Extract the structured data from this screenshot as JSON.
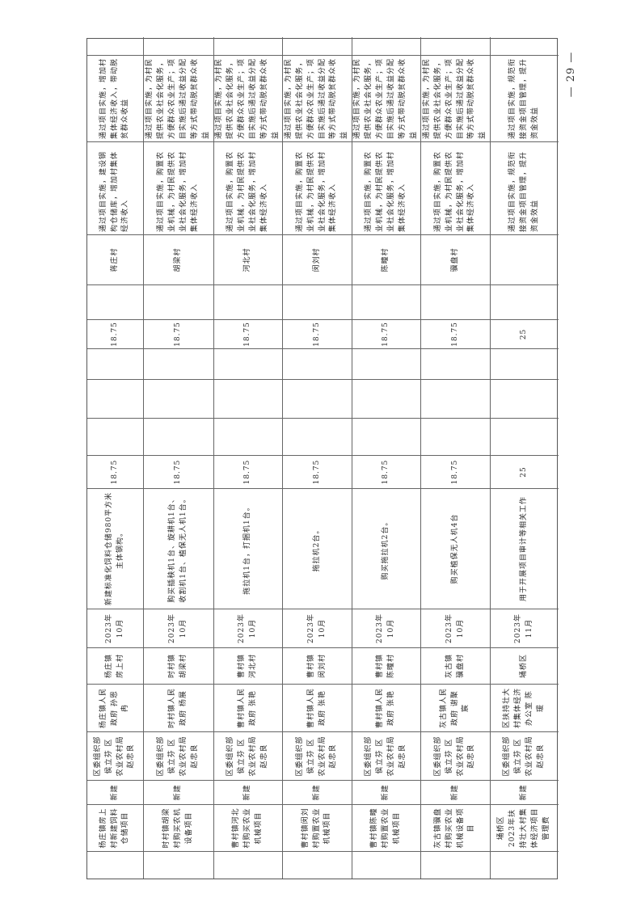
{
  "page_number": "— 29 —",
  "rows": [
    {
      "index": "",
      "name": "杨庄镇房上村新建饲料仓储项目",
      "type": "新建",
      "district_resp": "区委组织部 侯立芬 区农业农村局 赵忠良",
      "town_resp": "杨庄镇人民政府 孙恩冉",
      "location": "杨庄镇房上村",
      "time": "2023年10月",
      "content": "新建标准化饲料仓储980平方米主体钢构。",
      "total": "18.75",
      "fund_a": "",
      "fund_b": "",
      "fund_c": "",
      "fund_district": "18.75",
      "fund_other": "",
      "village": "蒋庄村",
      "mechanism": "通过项目实施，建设钢构仓储库，增加村集体经济收入",
      "target": "通过项目实施，增加村集体经济收入，带动脱贫群众收益",
      "remark": ""
    },
    {
      "index": "",
      "name": "时村镇胡梁村购买农机设备项目",
      "type": "新建",
      "district_resp": "区委组织部 侯立芬 区农业农村局 赵忠良",
      "town_resp": "时村镇人民政府 杨展",
      "location": "时村镇胡梁村",
      "time": "2023年10月",
      "content": "购买插秧机1台、旋耕机1台、收割机1台、植保无人机1台。",
      "total": "18.75",
      "fund_a": "",
      "fund_b": "",
      "fund_c": "",
      "fund_district": "18.75",
      "fund_other": "",
      "village": "胡梁村",
      "mechanism": "通过项目实施，购置农业机械，为村民提供农业社会化服务，增加村集体经济收入",
      "target": "通过项目实施，为村民提供农业社会化服务，方便群众农业生产；项目实施后通过收益分配等方式带动脱贫群众收益",
      "remark": ""
    },
    {
      "index": "",
      "name": "曹村镇河北村购买农业机械项目",
      "type": "新建",
      "district_resp": "区委组织部 侯立芬 区农业农村局 赵忠良",
      "town_resp": "曹村镇人民政府 张艳",
      "location": "曹村镇河北村",
      "time": "2023年10月",
      "content": "拖拉机1台，打捆机1台。",
      "total": "18.75",
      "fund_a": "",
      "fund_b": "",
      "fund_c": "",
      "fund_district": "18.75",
      "fund_other": "",
      "village": "河北村",
      "mechanism": "通过项目实施，购置农业机械，为村民提供农业社会化服务，增加村集体经济收入",
      "target": "通过项目实施，为村民提供农业社会化服务，方便群众农业生产；项目实施后通过收益分配等方式带动脱贫群众收益",
      "remark": ""
    },
    {
      "index": "",
      "name": "曹村镇闵刘村购置农业机械项目",
      "type": "新建",
      "district_resp": "区委组织部 侯立芬 区农业农村局 赵忠良",
      "town_resp": "曹村镇人民政府 张艳",
      "location": "曹村镇闵刘村",
      "time": "2023年10月",
      "content": "拖拉机2台。",
      "total": "18.75",
      "fund_a": "",
      "fund_b": "",
      "fund_c": "",
      "fund_district": "18.75",
      "fund_other": "",
      "village": "闵刘村",
      "mechanism": "通过项目实施，购置农业机械，为村民提供农业社会化服务，增加村集体经济收入",
      "target": "通过项目实施，为村民提供农业社会化服务，方便群众农业生产；项目实施后通过收益分配等方式带动脱贫群众收益",
      "remark": ""
    },
    {
      "index": "",
      "name": "曹村镇陈疃村购置农业机械项目",
      "type": "新建",
      "district_resp": "区委组织部 侯立芬 区农业农村局 赵忠良",
      "town_resp": "曹村镇人民政府 张艳",
      "location": "曹村镇陈疃村",
      "time": "2023年10月",
      "content": "购买拖拉机2台。",
      "total": "18.75",
      "fund_a": "",
      "fund_b": "",
      "fund_c": "",
      "fund_district": "18.75",
      "fund_other": "",
      "village": "陈疃村",
      "mechanism": "通过项目实施，购置农业机械，为村民提供农业社会化服务，增加村集体经济收入",
      "target": "通过项目实施，为村民提供农业社会化服务，方便群众农业生产；项目实施后通过收益分配等方式带动脱贫群众收益",
      "remark": ""
    },
    {
      "index": "",
      "name": "灰古镇骥盘村购买农业机械设备项目",
      "type": "新建",
      "district_resp": "区委组织部 侯立芬 区农业农村局 赵忠良",
      "town_resp": "灰古镇人民政府 谢聚宸",
      "location": "灰古镇骥盘村",
      "time": "2023年10月",
      "content": "购买植保无人机4台",
      "total": "18.75",
      "fund_a": "",
      "fund_b": "",
      "fund_c": "",
      "fund_district": "18.75",
      "fund_other": "",
      "village": "骥盘村",
      "mechanism": "通过项目实施，购置农业机械，为村民提供农业社会化服务，增加村集体经济收入",
      "target": "通过项目实施，为村民提供农业社会化服务，方便群众农业生产；项目实施后通过收益分配等方式带动脱贫群众收益",
      "remark": ""
    },
    {
      "index": "",
      "name": "埇桥区2023年扶持壮大村集体经济项目管理费",
      "type": "新建",
      "district_resp": "区委组织部 侯立芬 区农业农村局 赵忠良",
      "town_resp": "区扶持壮大村集体经济办公室 陈瑗",
      "location": "埇桥区",
      "time": "2023年11月",
      "content": "用于开展项目审计等相关工作",
      "total": "25",
      "fund_a": "",
      "fund_b": "",
      "fund_c": "",
      "fund_district": "25",
      "fund_other": "",
      "village": "",
      "mechanism": "通过项目实施，规范衔接资金项目管理，提升资金效益",
      "target": "通过项目实施，规范衔接资金项目管理，提升资金效益",
      "remark": ""
    }
  ]
}
